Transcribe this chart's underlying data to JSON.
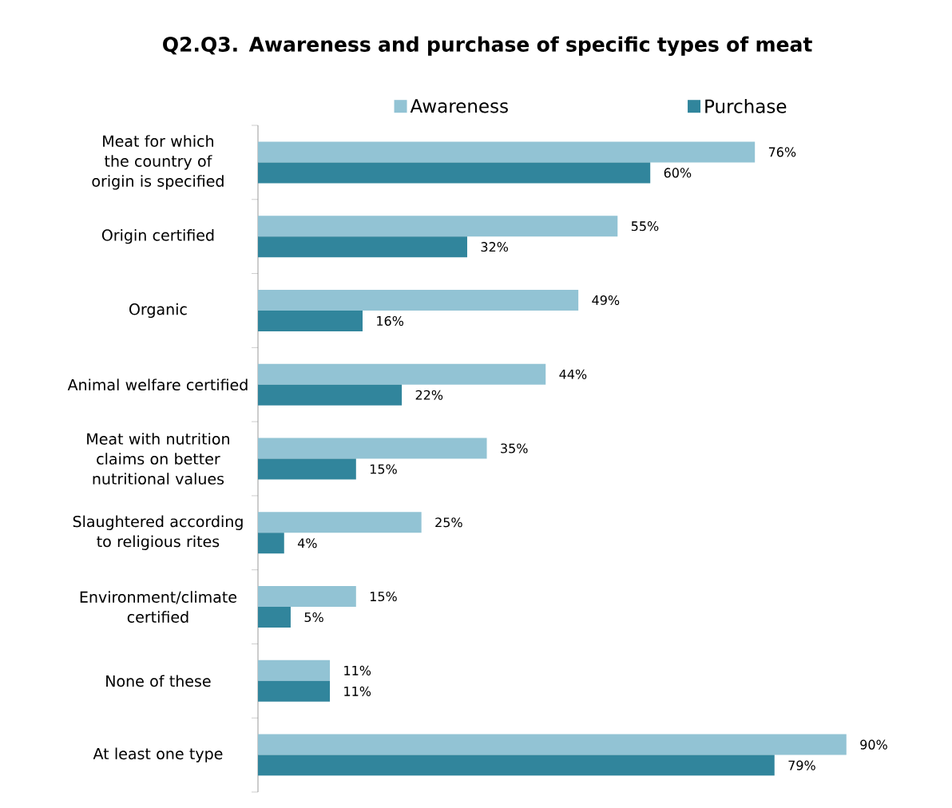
{
  "chart_data": {
    "type": "bar",
    "orientation": "horizontal",
    "title": "Q2.Q3. Awareness and purchase of specific types of meat",
    "categories": [
      "Meat for which the country of origin is specified",
      "Origin certified",
      "Organic",
      "Animal welfare certified",
      "Meat with nutrition claims on better nutritional values",
      "Slaughtered according to religious rites",
      "Environment/climate certified",
      "None of these",
      "At least one type"
    ],
    "series": [
      {
        "name": "Awareness",
        "color": "#92c3d4",
        "values": [
          76,
          55,
          49,
          44,
          35,
          25,
          15,
          11,
          90
        ],
        "value_labels": [
          "76%",
          "55%",
          "49%",
          "44%",
          "35%",
          "25%",
          "15%",
          "11%",
          "90%"
        ]
      },
      {
        "name": "Purchase",
        "color": "#31859c",
        "values": [
          60,
          32,
          16,
          22,
          15,
          4,
          5,
          11,
          79
        ],
        "value_labels": [
          "60%",
          "32%",
          "16%",
          "22%",
          "15%",
          "4%",
          "5%",
          "11%",
          "79%"
        ]
      }
    ],
    "legend": "top"
  }
}
